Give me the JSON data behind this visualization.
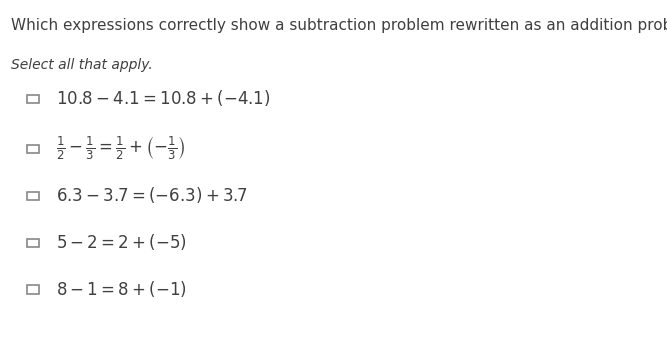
{
  "title": "Which expressions correctly show a subtraction problem rewritten as an addition problem?",
  "subtitle": "Select all that apply.",
  "options": [
    "$10.8 - 4.1 = 10.8 + (-4.1)$",
    "$\\dfrac{1}{2} - \\dfrac{1}{3} = \\dfrac{1}{2} + \\left(-\\dfrac{1}{3}\\right)$",
    "$6.3 - 3.7 = (-6.3) + 3.7$",
    "$5 - 2 = 2 + (-5)$",
    "$8 - 1 = 8 + (-1)$"
  ],
  "bg_color": "#ffffff",
  "text_color": "#404040",
  "title_fontsize": 11,
  "subtitle_fontsize": 10,
  "option_fontsize": 12,
  "checkbox_size": 0.012,
  "checkbox_color": "#888888"
}
